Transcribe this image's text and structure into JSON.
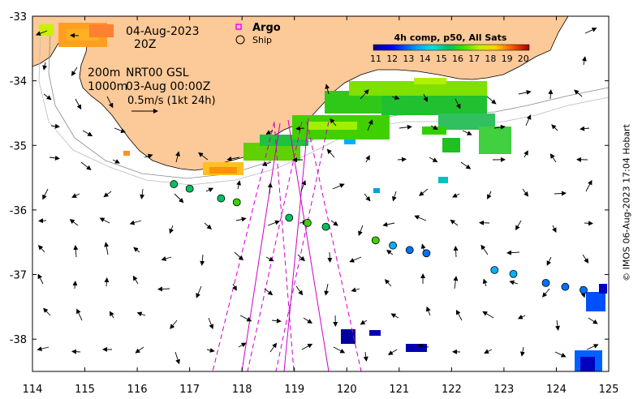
{
  "map": {
    "date": "04-Aug-2023",
    "time": "20Z",
    "depth_line_1": "200m",
    "depth_line_2": "1000m",
    "product": "NRT00 GSL",
    "product_time": "03-Aug 00:00Z",
    "scale_label": "0.5m/s (1kt 24h)",
    "lon_range": [
      114,
      125
    ],
    "lat_range": [
      -38.5,
      -33
    ]
  },
  "legend": {
    "argo_label": "Argo",
    "ship_label": "Ship",
    "argo_color": "#ff00ff"
  },
  "colorbar": {
    "title": "4h comp, p50, All Sats",
    "ticks": [
      "11",
      "12",
      "13",
      "14",
      "15",
      "16",
      "17",
      "18",
      "19",
      "20"
    ]
  },
  "axes": {
    "x_ticks": [
      "114",
      "115",
      "116",
      "117",
      "118",
      "119",
      "120",
      "121",
      "122",
      "123",
      "124",
      "125"
    ],
    "y_ticks": [
      "-33",
      "-34",
      "-35",
      "-36",
      "-37",
      "-38"
    ]
  },
  "credit": "© IMOS 06-Aug-2023 17:04 Hobart",
  "ship_stations": [
    {
      "lon": 116.7,
      "lat": -35.6,
      "temp": 15.3
    },
    {
      "lon": 117.0,
      "lat": -35.67,
      "temp": 15.5
    },
    {
      "lon": 117.6,
      "lat": -35.82,
      "temp": 15.5
    },
    {
      "lon": 117.9,
      "lat": -35.88,
      "temp": 15.6
    },
    {
      "lon": 118.9,
      "lat": -36.12,
      "temp": 15.5
    },
    {
      "lon": 119.25,
      "lat": -36.2,
      "temp": 15.6
    },
    {
      "lon": 119.6,
      "lat": -36.26,
      "temp": 15.5
    },
    {
      "lon": 120.55,
      "lat": -36.47,
      "temp": 16.5
    },
    {
      "lon": 120.88,
      "lat": -36.55,
      "temp": 13.8
    },
    {
      "lon": 121.2,
      "lat": -36.62,
      "temp": 13.5
    },
    {
      "lon": 121.52,
      "lat": -36.67,
      "temp": 13.2
    },
    {
      "lon": 122.82,
      "lat": -36.93,
      "temp": 13.8
    },
    {
      "lon": 123.18,
      "lat": -36.99,
      "temp": 13.6
    },
    {
      "lon": 123.8,
      "lat": -37.13,
      "temp": 13.3
    },
    {
      "lon": 124.17,
      "lat": -37.19,
      "temp": 13.2
    },
    {
      "lon": 124.52,
      "lat": -37.24,
      "temp": 13.2
    }
  ]
}
